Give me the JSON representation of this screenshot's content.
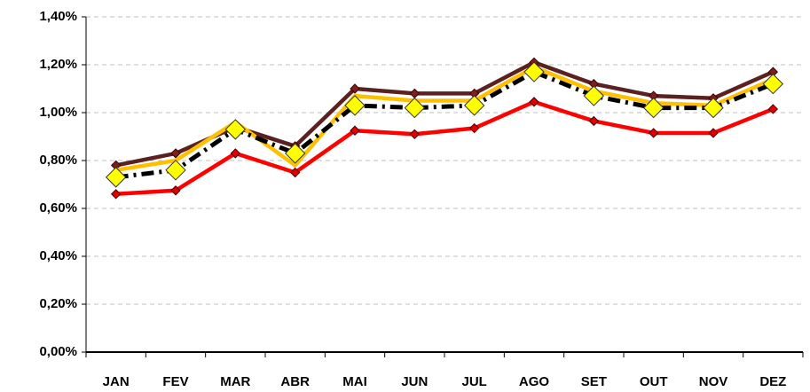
{
  "chart_data": {
    "type": "line",
    "categories": [
      "JAN",
      "FEV",
      "MAR",
      "ABR",
      "MAI",
      "JUN",
      "JUL",
      "AGO",
      "SET",
      "OUT",
      "NOV",
      "DEZ"
    ],
    "ylim": [
      0,
      1.4
    ],
    "yticks": [
      {
        "value": 0,
        "label": "0,00%"
      },
      {
        "value": 0.2,
        "label": "0,20%"
      },
      {
        "value": 0.4,
        "label": "0,40%"
      },
      {
        "value": 0.6,
        "label": "0,60%"
      },
      {
        "value": 0.8,
        "label": "0,80%"
      },
      {
        "value": 1.0,
        "label": "1,00%"
      },
      {
        "value": 1.2,
        "label": "1,20%"
      },
      {
        "value": 1.4,
        "label": "1,40%"
      }
    ],
    "grid": true,
    "series": [
      {
        "color": "#5b2020",
        "marker_color": "#7a2020",
        "values": [
          0.78,
          0.83,
          0.94,
          0.86,
          1.1,
          1.08,
          1.08,
          1.21,
          1.12,
          1.07,
          1.06,
          1.17
        ]
      },
      {
        "color": "#ffc000",
        "values": [
          0.76,
          0.8,
          0.96,
          0.78,
          1.07,
          1.05,
          1.05,
          1.19,
          1.09,
          1.04,
          1.03,
          1.14
        ]
      },
      {
        "color": "#000000",
        "dashed": true,
        "marker_color": "#ffff00",
        "values": [
          0.73,
          0.76,
          0.93,
          0.83,
          1.03,
          1.02,
          1.03,
          1.17,
          1.07,
          1.02,
          1.02,
          1.12
        ]
      },
      {
        "color": "#ff0000",
        "marker_color": "#e00000",
        "values": [
          0.66,
          0.675,
          0.83,
          0.75,
          0.925,
          0.91,
          0.935,
          1.045,
          0.965,
          0.915,
          0.915,
          1.015
        ]
      }
    ]
  }
}
